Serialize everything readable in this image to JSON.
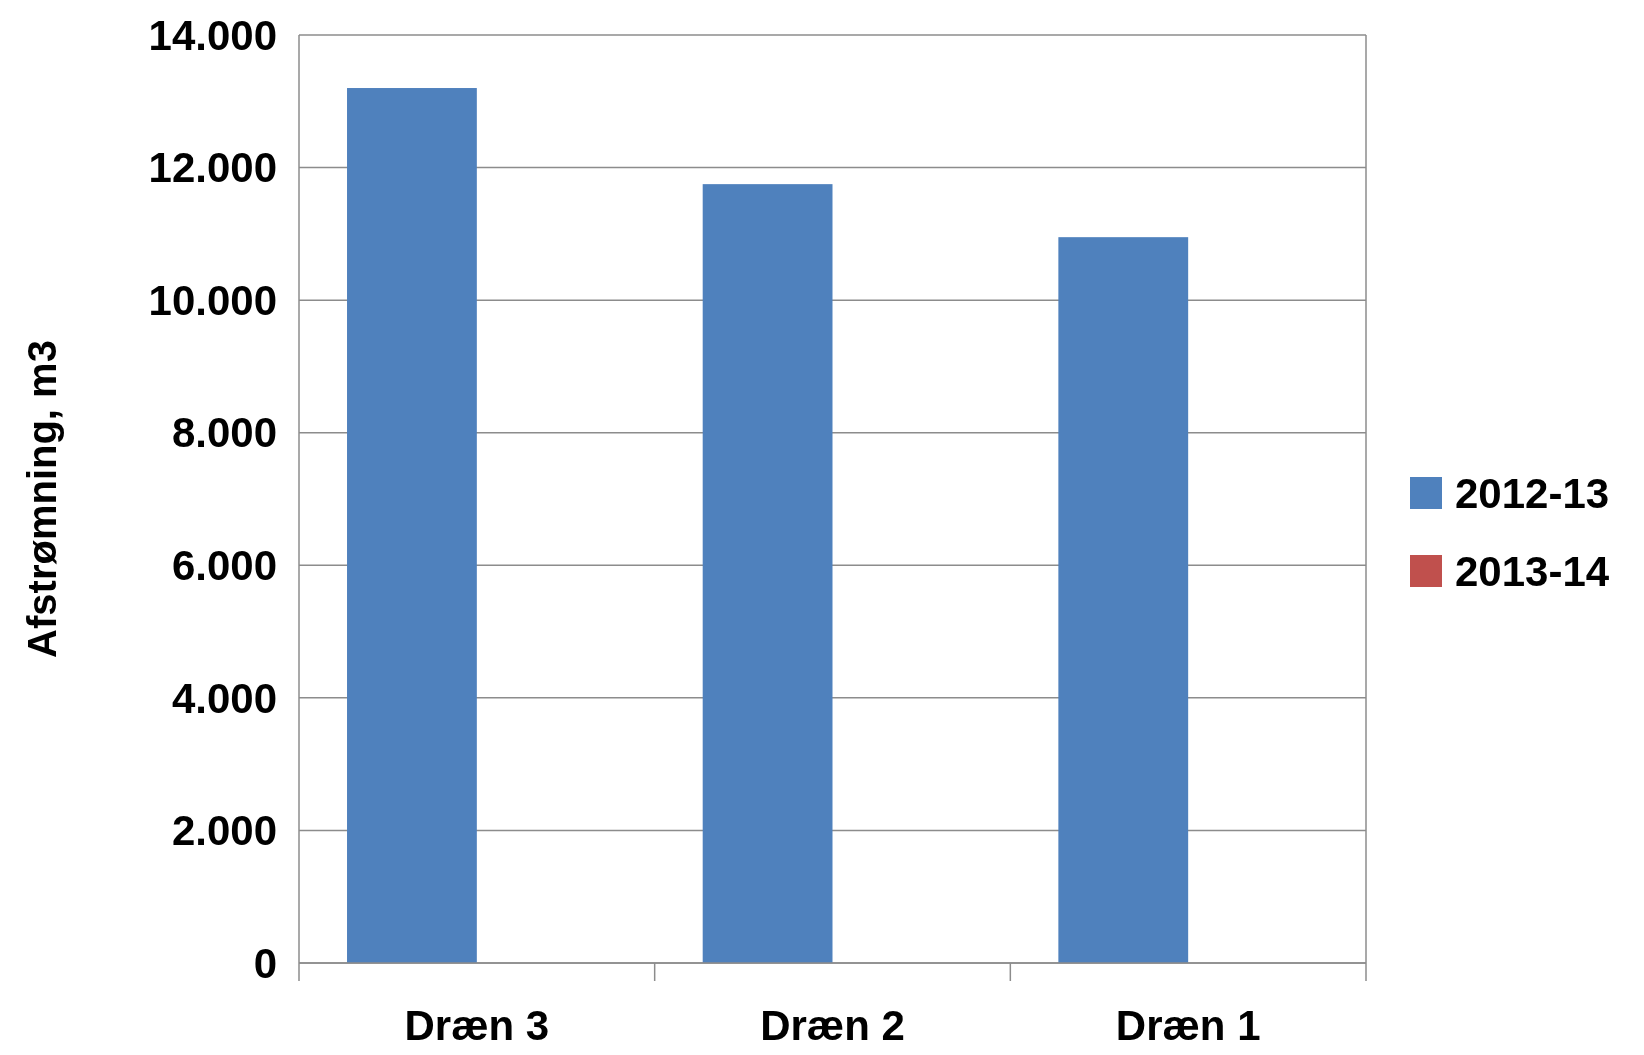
{
  "chart_data": {
    "type": "bar",
    "ylabel": "Afstrømning, m3",
    "categories": [
      "Dræn 3",
      "Dræn 2",
      "Dræn 1"
    ],
    "series": [
      {
        "name": "2012-13",
        "color": "#4f81bd",
        "values": [
          13200,
          11750,
          10950
        ]
      },
      {
        "name": "2013-14",
        "color": "#c0504d",
        "values": [
          null,
          null,
          null
        ]
      }
    ],
    "ylim": [
      0,
      14000
    ],
    "yticks": [
      {
        "value": 0,
        "label": "0"
      },
      {
        "value": 2000,
        "label": "2.000"
      },
      {
        "value": 4000,
        "label": "4.000"
      },
      {
        "value": 6000,
        "label": "6.000"
      },
      {
        "value": 8000,
        "label": "8.000"
      },
      {
        "value": 10000,
        "label": "10.000"
      },
      {
        "value": 12000,
        "label": "12.000"
      },
      {
        "value": 14000,
        "label": "14.000"
      }
    ],
    "grid": "y",
    "legend": "right"
  }
}
